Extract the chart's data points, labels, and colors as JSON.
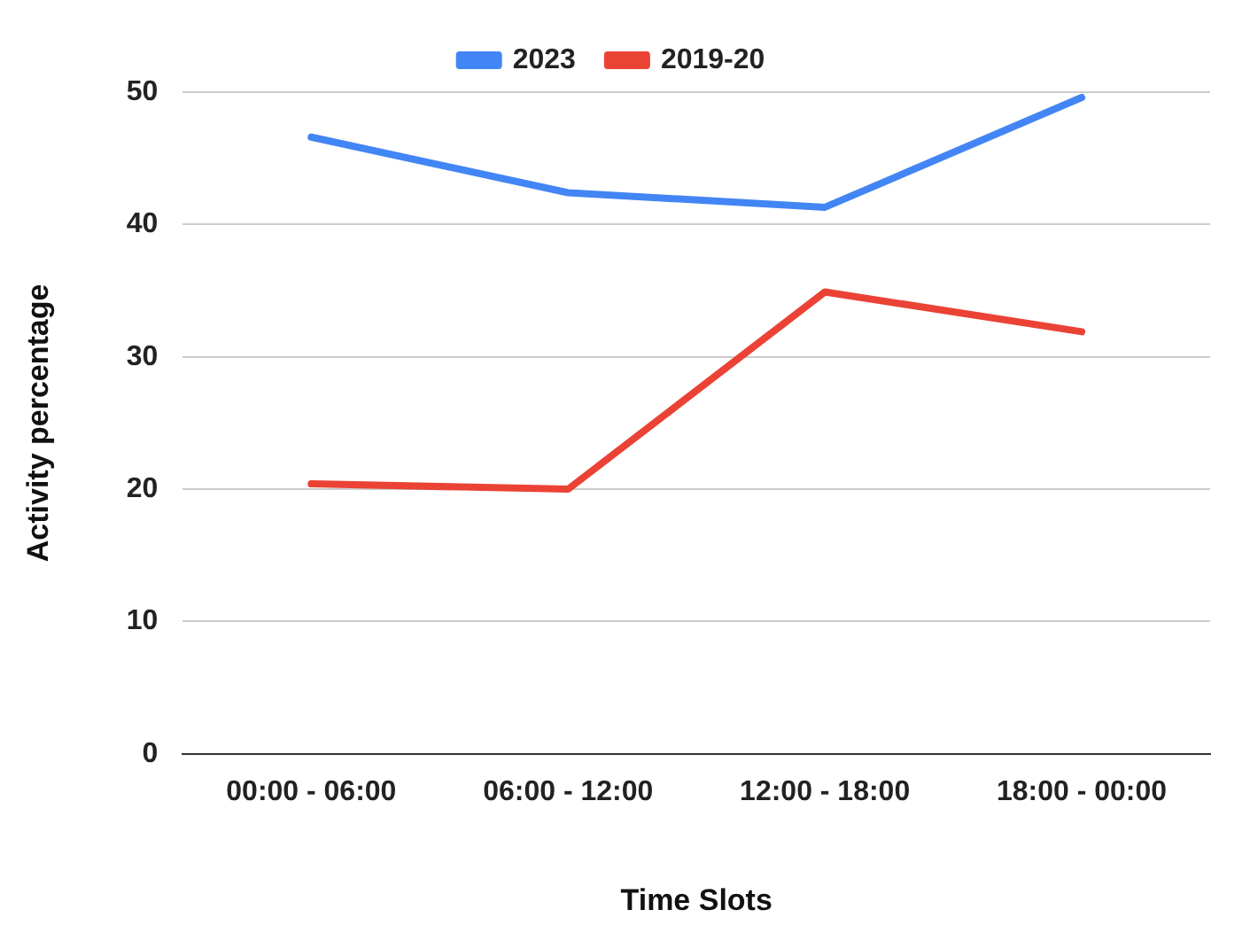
{
  "chart_data": {
    "type": "line",
    "xlabel": "Time Slots",
    "ylabel": "Activity percentage",
    "categories": [
      "00:00 - 06:00",
      "06:00 - 12:00",
      "12:00 - 18:00",
      "18:00 - 00:00"
    ],
    "series": [
      {
        "name": "2023",
        "color": "#4285f4",
        "values": [
          46.6,
          42.4,
          41.3,
          49.6
        ]
      },
      {
        "name": "2019-20",
        "color": "#ea4335",
        "values": [
          20.4,
          20.0,
          34.9,
          31.9
        ]
      }
    ],
    "ylim": [
      0,
      50
    ],
    "yticks": [
      0,
      10,
      20,
      30,
      40,
      50
    ],
    "grid": "y",
    "legend": "top",
    "marker": "none"
  }
}
